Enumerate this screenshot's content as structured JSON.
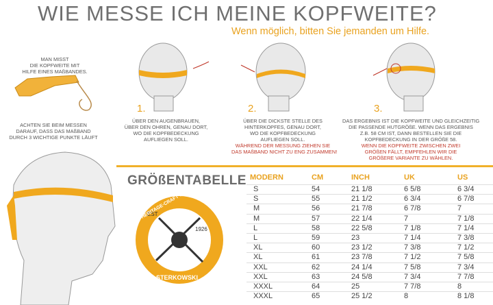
{
  "header": {
    "title": "WIE MESSE ICH MEINE KOPFWEITE?",
    "subtitle": "Wenn möglich, bitten Sie jemanden um Hilfe."
  },
  "intro": {
    "top_note": [
      "MAN MISST",
      "DIE KOPFWEITE MIT",
      "HILFE EINES MAßBANDES."
    ],
    "bottom_note": [
      "ACHTEN SIE BEIM MESSEN",
      "DARAUF, DASS DAS MAßBAND",
      "DURCH 3 WICHTIGE PUNKTE LÄUFT"
    ]
  },
  "steps": [
    {
      "number": "1.",
      "lines": [
        "ÜBER DEN AUGENBRAUEN,",
        "ÜBER DEN OHREN, GENAU DORT,",
        "WO DIE KOPFBEDECKUNG",
        "AUFLIEGEN SOLL."
      ],
      "warning": []
    },
    {
      "number": "2.",
      "lines": [
        "ÜBER DIE DICKSTE STELLE DES",
        "HINTERKOPFES, GENAU DORT,",
        "WO DIE KOPFBEDECKUNG",
        "AUFLIEGEN SOLL."
      ],
      "warning": [
        "WÄHREND DER MESSUNG ZIEHEN SIE",
        "DAS MAßBAND NICHT ZU ENG ZUSAMMEN!"
      ]
    },
    {
      "number": "3.",
      "lines": [
        "DAS ERGEBNIS IST DIE KOPFWEITE UND GLEICHZEITIG",
        "DIE PASSENDE HUTGRÖßE. WENN DAS ERGEBNIS",
        "Z.B. 58 CM IST, DANN BESTELLEN SIE DIE",
        "KOPFBEDECKUNG IN DER GRÖßE 58."
      ],
      "warning": [
        "WENN DIE KOPFWEITE ZWISCHEN ZWEI",
        "GRÖßEN FÄLLT, EMPFEHLEN WIR DIE",
        "GRÖßERE VARIANTE ZU WÄHLEN."
      ]
    }
  ],
  "logo": {
    "ring_top": "HERITAGE·CRAFT·MATERIALS",
    "ring_bottom": "STERKOWSKI",
    "est": "EST",
    "year": "1926"
  },
  "table": {
    "title": "GRÖßENTABELLE",
    "headers": [
      "MODERN",
      "CM",
      "INCH",
      "UK",
      "US"
    ],
    "rows": [
      [
        "S",
        "54",
        "21 1/8",
        "6 5/8",
        "6 3/4"
      ],
      [
        "S",
        "55",
        "21 1/2",
        "6 3/4",
        "6 7/8"
      ],
      [
        "M",
        "56",
        "21 7/8",
        "6 7/8",
        "7"
      ],
      [
        "M",
        "57",
        "22 1/4",
        "7",
        "7 1/8"
      ],
      [
        "L",
        "58",
        "22 5/8",
        "7 1/8",
        "7 1/4"
      ],
      [
        "L",
        "59",
        "23",
        "7 1/4",
        "7 3/8"
      ],
      [
        "XL",
        "60",
        "23 1/2",
        "7 3/8",
        "7 1/2"
      ],
      [
        "XL",
        "61",
        "23 7/8",
        "7 1/2",
        "7 5/8"
      ],
      [
        "XXL",
        "62",
        "24 1/4",
        "7 5/8",
        "7 3/4"
      ],
      [
        "XXL",
        "63",
        "24 5/8",
        "7 3/4",
        "7 7/8"
      ],
      [
        "XXXL",
        "64",
        "25",
        "7 7/8",
        "8"
      ],
      [
        "XXXL",
        "65",
        "25 1/2",
        "8",
        "8 1/8"
      ]
    ]
  }
}
